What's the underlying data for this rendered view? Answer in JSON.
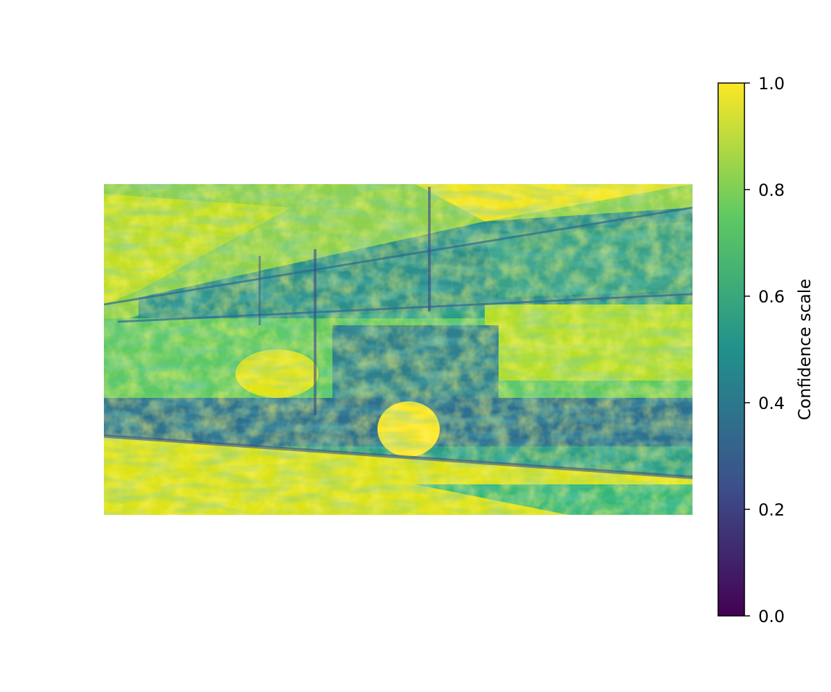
{
  "chart_data": {
    "type": "heatmap",
    "title": "",
    "xlabel": "",
    "ylabel": "",
    "colormap": "viridis",
    "colormap_stops": [
      "#440154",
      "#3b528b",
      "#21918c",
      "#5ec962",
      "#fde725"
    ],
    "colorbar": {
      "label": "Confidence scale",
      "range": [
        0.0,
        1.0
      ],
      "ticks": [
        0.0,
        0.2,
        0.4,
        0.6,
        0.8,
        1.0
      ],
      "tick_labels": [
        "0.0",
        "0.2",
        "0.4",
        "0.6",
        "0.8",
        "1.0"
      ],
      "placement": "right"
    },
    "axes_visible": false,
    "grid": false
  }
}
